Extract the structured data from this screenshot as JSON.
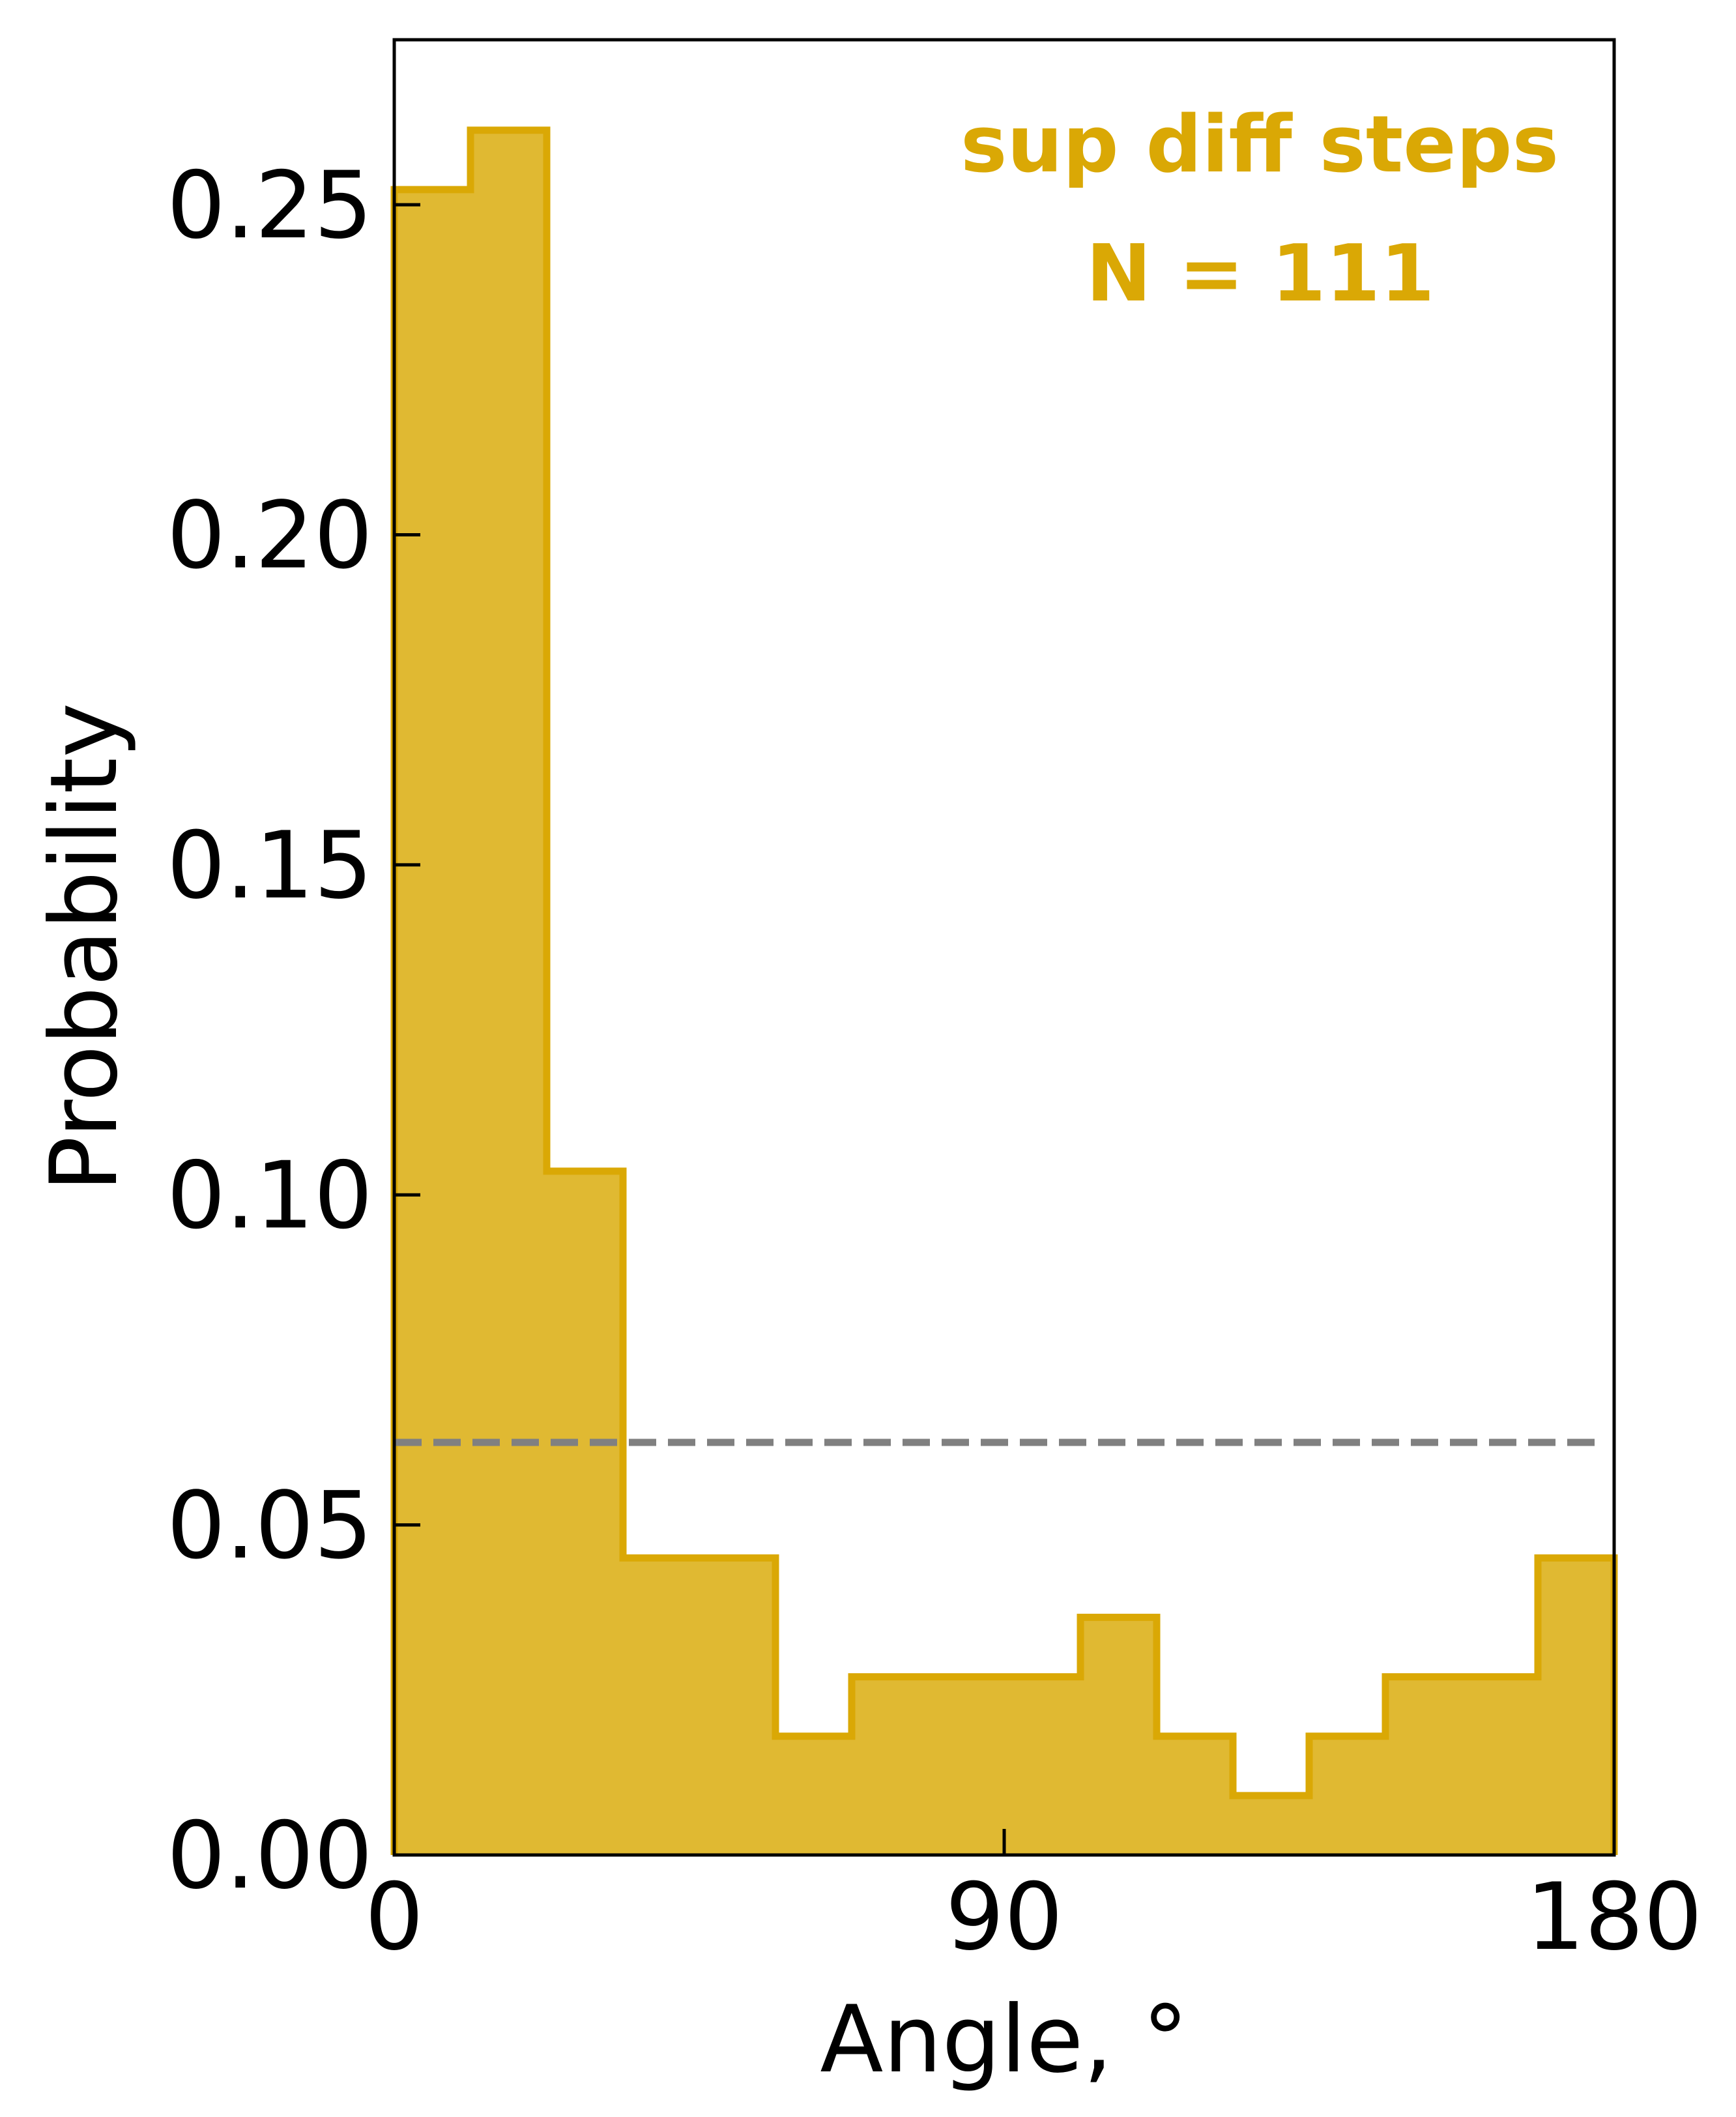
{
  "chart_data": {
    "type": "bar",
    "style": "step-histogram",
    "bin_edges": [
      0,
      11.25,
      22.5,
      33.75,
      45,
      56.25,
      67.5,
      78.75,
      90,
      101.25,
      112.5,
      123.75,
      135,
      146.25,
      157.5,
      168.75,
      180
    ],
    "values": [
      0.2523,
      0.2613,
      0.1036,
      0.045,
      0.045,
      0.018,
      0.027,
      0.027,
      0.027,
      0.036,
      0.018,
      0.009,
      0.018,
      0.027,
      0.027,
      0.045
    ],
    "uniform_reference": 0.0625,
    "xlabel": "Angle, °",
    "ylabel": "Probability",
    "xlim": [
      0,
      180
    ],
    "ylim": [
      0,
      0.275
    ],
    "xticks": [
      0,
      90,
      180
    ],
    "xtick_labels": [
      "0",
      "90",
      "180"
    ],
    "yticks": [
      0,
      0.05,
      0.1,
      0.15,
      0.2,
      0.25
    ],
    "ytick_labels": [
      "0.00",
      "0.05",
      "0.10",
      "0.15",
      "0.20",
      "0.25"
    ],
    "annotation": {
      "label": "sup diff steps",
      "count": "N = 111",
      "position": "top-right"
    },
    "grid": false,
    "colors": {
      "fill": "#e0b932",
      "edge": "#daa805",
      "reference": "#808080",
      "annotation": "#daa805",
      "axis": "#000000"
    }
  }
}
